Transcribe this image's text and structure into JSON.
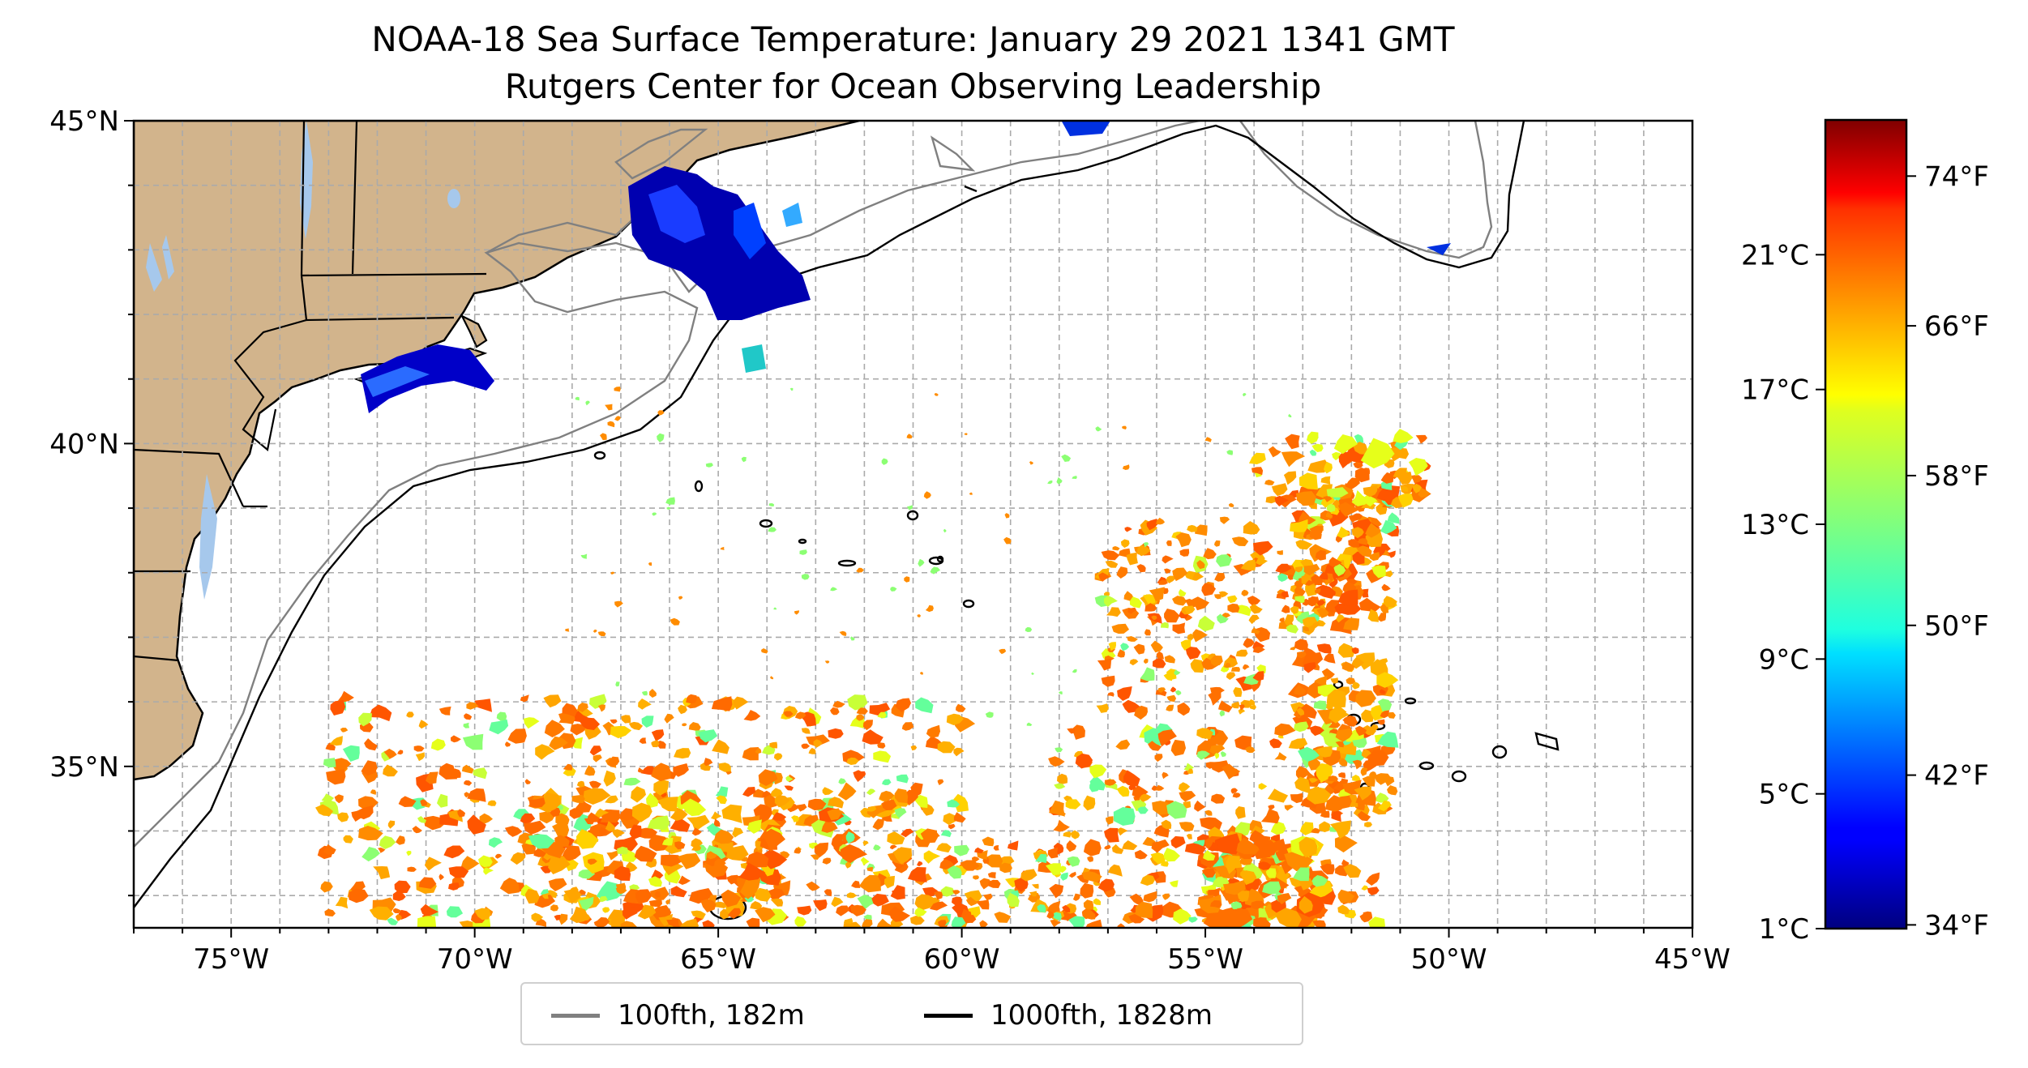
{
  "title": "NOAA-18 Sea Surface Temperature: January 29 2021 1341 GMT",
  "subtitle": "Rutgers Center for Ocean Observing Leadership",
  "map": {
    "lon_range": [
      -77,
      -45
    ],
    "lat_range": [
      32.5,
      45
    ],
    "lon_ticks": [
      {
        "value": -75,
        "label": "75°W"
      },
      {
        "value": -70,
        "label": "70°W"
      },
      {
        "value": -65,
        "label": "65°W"
      },
      {
        "value": -60,
        "label": "60°W"
      },
      {
        "value": -55,
        "label": "55°W"
      },
      {
        "value": -50,
        "label": "50°W"
      },
      {
        "value": -45,
        "label": "45°W"
      }
    ],
    "lat_ticks": [
      {
        "value": 45,
        "label": "45°N"
      },
      {
        "value": 40,
        "label": "40°N"
      },
      {
        "value": 35,
        "label": "35°N"
      }
    ],
    "gridlines": true,
    "land_color": "#d2b48c",
    "lake_color": "#a6c8ec"
  },
  "legend": [
    {
      "label": "100fth, 182m",
      "color": "#808080"
    },
    {
      "label": "1000fth, 1828m",
      "color": "#000000"
    }
  ],
  "colorbar": {
    "colormap": "jet",
    "min_c": 1,
    "max_c": 25,
    "celsius_ticks": [
      "21°C",
      "17°C",
      "13°C",
      "9°C",
      "5°C",
      "1°C"
    ],
    "fahrenheit_ticks": [
      "74°F",
      "66°F",
      "58°F",
      "50°F",
      "42°F",
      "34°F"
    ]
  }
}
